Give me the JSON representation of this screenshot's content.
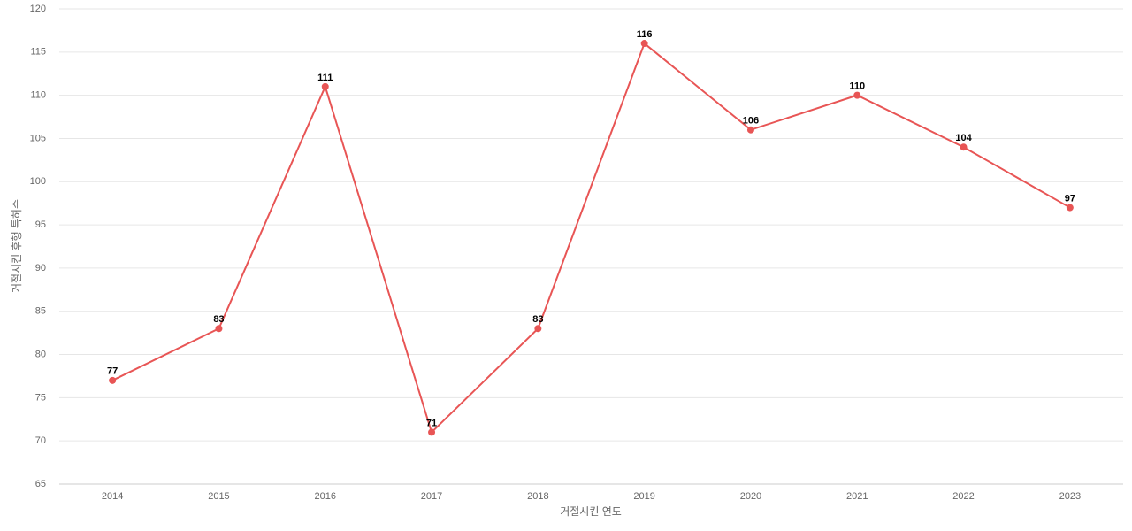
{
  "chart_data": {
    "type": "line",
    "x_label": "거절시킨 연도",
    "y_label": "거절시킨 후행 특허수",
    "categories": [
      "2014",
      "2015",
      "2016",
      "2017",
      "2018",
      "2019",
      "2020",
      "2021",
      "2022",
      "2023"
    ],
    "values": [
      77,
      83,
      111,
      71,
      83,
      116,
      106,
      110,
      104,
      97
    ],
    "color": "#e85555",
    "ylim": [
      65,
      120
    ],
    "yticks": [
      65,
      70,
      75,
      80,
      85,
      90,
      95,
      100,
      105,
      110,
      115,
      120
    ],
    "grid": true
  }
}
